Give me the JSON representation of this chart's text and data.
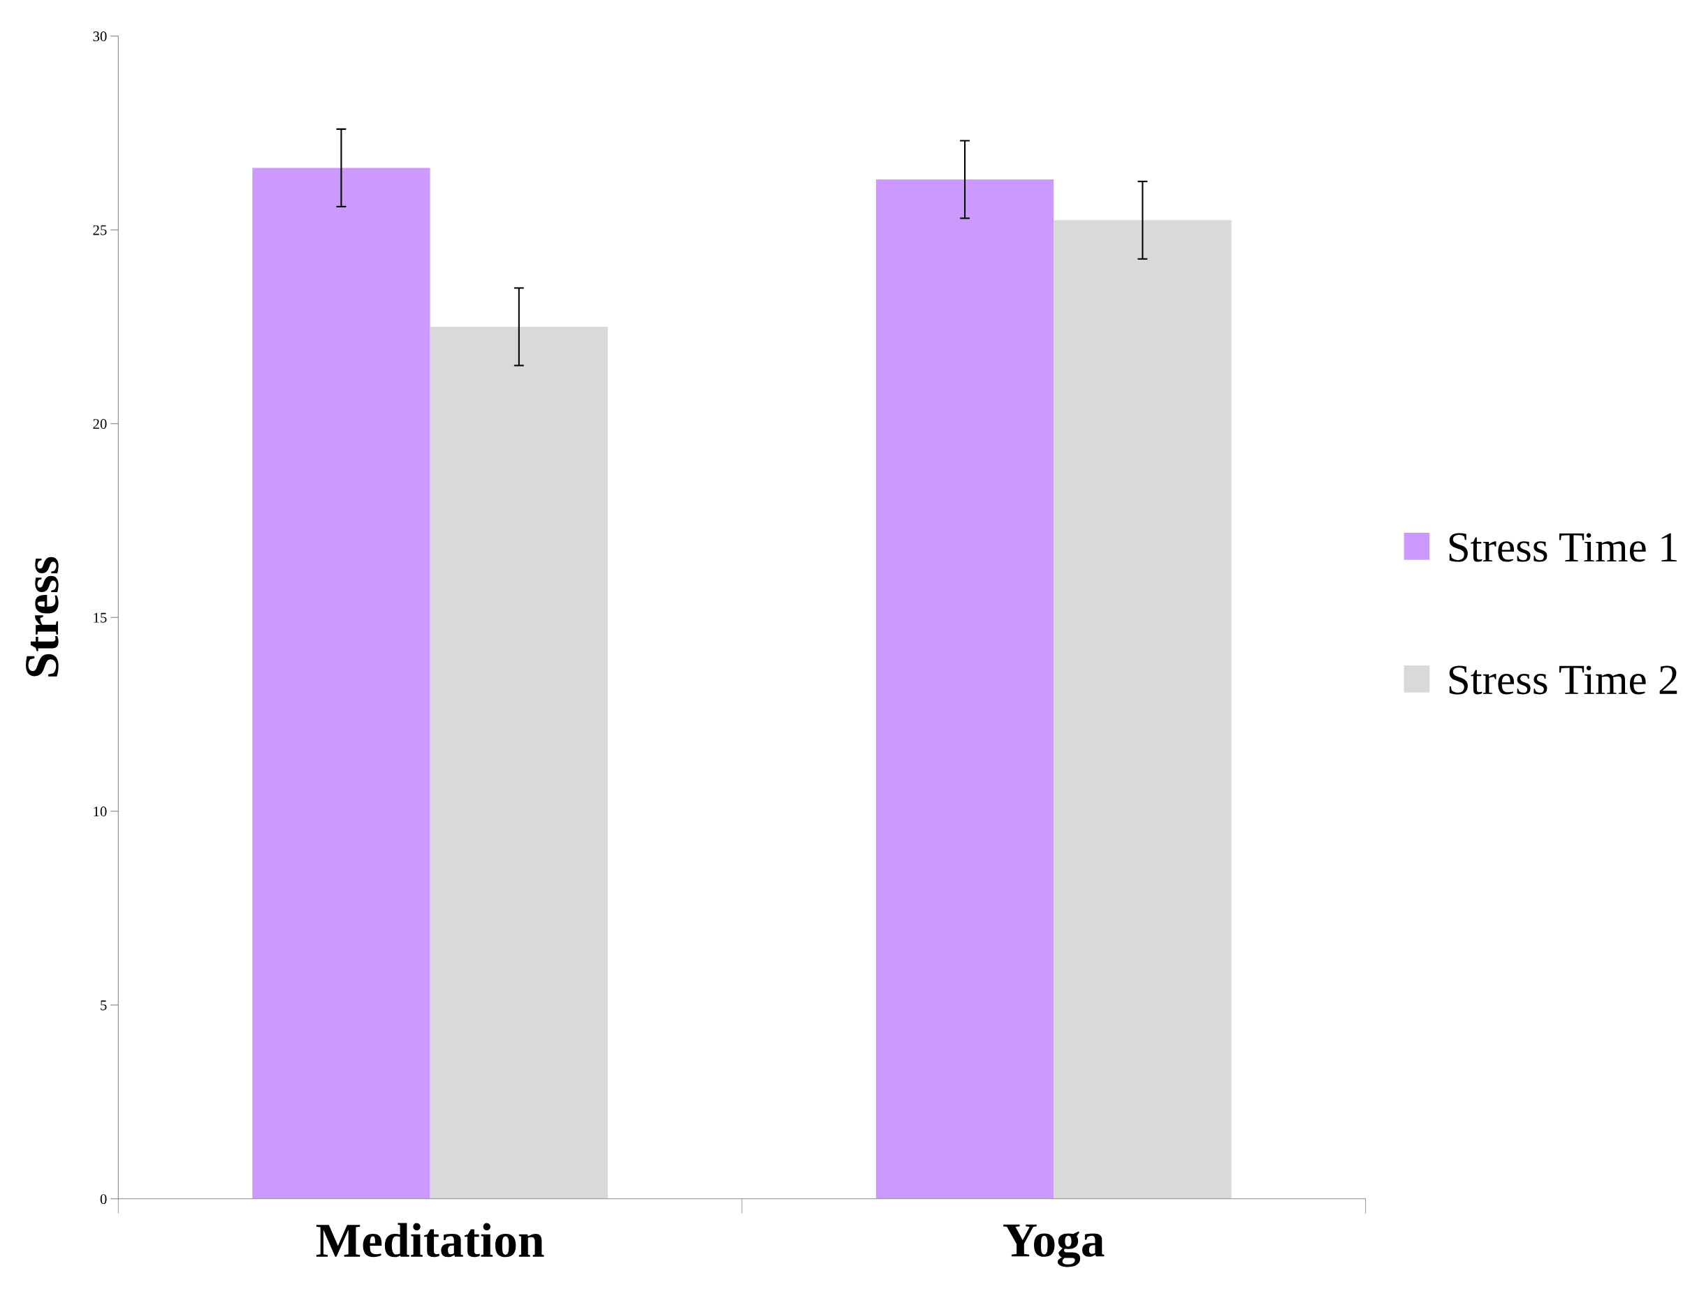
{
  "chart_data": {
    "type": "bar",
    "ylabel": "Stress",
    "categories": [
      "Meditation",
      "Yoga"
    ],
    "series": [
      {
        "name": "Stress Time 1",
        "color": "#cc99ff",
        "values": [
          26.6,
          26.3
        ],
        "errors": [
          1,
          1
        ]
      },
      {
        "name": "Stress Time 2",
        "color": "#d9d9d9",
        "values": [
          22.5,
          25.25
        ],
        "errors": [
          1,
          1
        ]
      }
    ],
    "ylim": [
      0,
      30
    ],
    "yticks": [
      0,
      5,
      10,
      15,
      20,
      25,
      30
    ],
    "grid": false,
    "legend": "right"
  }
}
